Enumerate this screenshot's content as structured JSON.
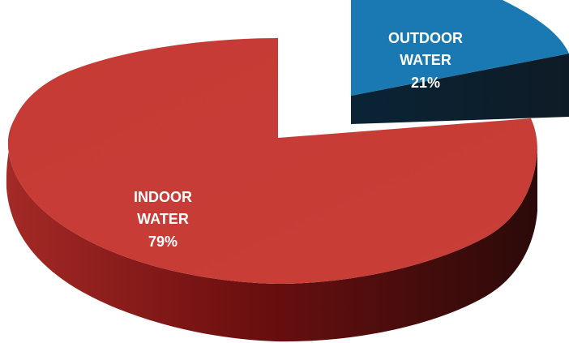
{
  "chart_data": {
    "type": "pie",
    "style": "3d-exploded",
    "slices": [
      {
        "label_line1": "INDOOR",
        "label_line2": "WATER",
        "percent_label": "79%",
        "value": 79,
        "color": "#c83b35",
        "side_color": "#7a1212"
      },
      {
        "label_line1": "OUTDOOR",
        "label_line2": "WATER",
        "percent_label": "21%",
        "value": 21,
        "color": "#1a79b3",
        "side_color": "#0e2030"
      }
    ]
  }
}
